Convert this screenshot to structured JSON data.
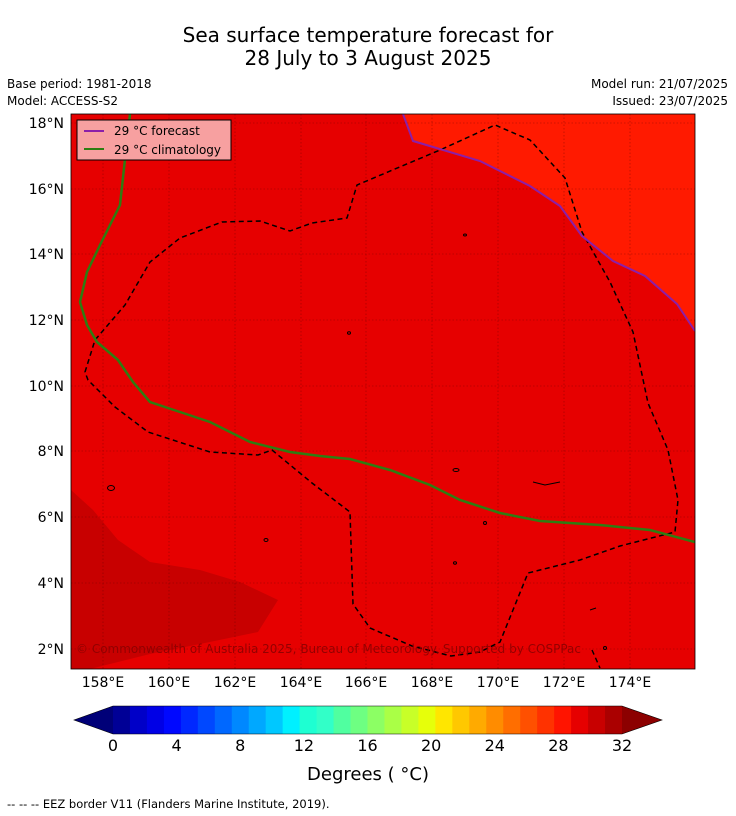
{
  "title": {
    "line1": "Sea surface temperature forecast for",
    "line2": "28 July to 3 August 2025"
  },
  "meta": {
    "base_period": "Base period: 1981-2018",
    "model": "Model: ACCESS-S2",
    "model_run": "Model run: 21/07/2025",
    "issued": "Issued: 23/07/2025"
  },
  "map": {
    "lat_ticks": [
      "18°N",
      "16°N",
      "14°N",
      "12°N",
      "10°N",
      "8°N",
      "6°N",
      "4°N",
      "2°N"
    ],
    "lon_ticks": [
      "158°E",
      "160°E",
      "162°E",
      "164°E",
      "166°E",
      "168°E",
      "170°E",
      "172°E",
      "174°E"
    ],
    "legend": [
      {
        "label": "29 °C  forecast",
        "color": "#8B1FA9"
      },
      {
        "label": "29 °C  climatology",
        "color": "#2E7D12"
      }
    ],
    "copyright": "© Commonwealth of Australia 2025, Bureau of Meteorology. Supported by COSPPac",
    "colors": {
      "main": "#E60000",
      "warm": "#FF1A00",
      "cool": "#C80000"
    }
  },
  "colorbar": {
    "tick_labels": [
      "0",
      "4",
      "8",
      "12",
      "16",
      "20",
      "24",
      "28",
      "32"
    ],
    "label": "Degrees ( °C)",
    "colors": [
      "#000096",
      "#0000C8",
      "#0000E6",
      "#0008FF",
      "#0028FF",
      "#0048FF",
      "#0068FF",
      "#0088FF",
      "#00A8FF",
      "#00C8FF",
      "#00F0FF",
      "#1EFFD2",
      "#32FFC8",
      "#50FFA0",
      "#6EFF82",
      "#8CFF64",
      "#AAFF46",
      "#C8FF28",
      "#E6FF0A",
      "#FFE600",
      "#FFC800",
      "#FFAA00",
      "#FF8C00",
      "#FF6E00",
      "#FF5000",
      "#FF3200",
      "#FF1400",
      "#E60000",
      "#C80000",
      "#AA0000"
    ],
    "under_color": "#000078",
    "over_color": "#8C0000"
  },
  "footer": "--  --  -- EEZ border V11 (Flanders Marine Institute, 2019)."
}
